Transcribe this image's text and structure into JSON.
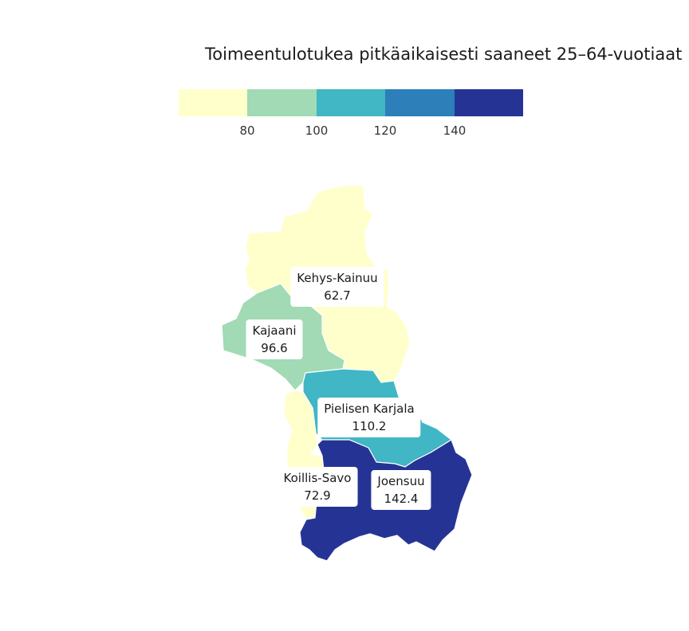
{
  "title": "Toimeentulotukea pitkäaikaisesti saaneet 25–64-vuotiaat",
  "legend": {
    "colors": [
      "#ffffcc",
      "#a1dab4",
      "#41b6c4",
      "#2c7fb8",
      "#253494"
    ],
    "ticks": [
      "80",
      "100",
      "120",
      "140"
    ]
  },
  "regions": [
    {
      "name": "Kehys-Kainuu",
      "value": "62.7",
      "color": "#ffffcc"
    },
    {
      "name": "Kajaani",
      "value": "96.6",
      "color": "#a1dab4"
    },
    {
      "name": "Pielisen Karjala",
      "value": "110.2",
      "color": "#41b6c4"
    },
    {
      "name": "Koillis-Savo",
      "value": "72.9",
      "color": "#ffffcc"
    },
    {
      "name": "Joensuu",
      "value": "142.4",
      "color": "#253494"
    }
  ]
}
